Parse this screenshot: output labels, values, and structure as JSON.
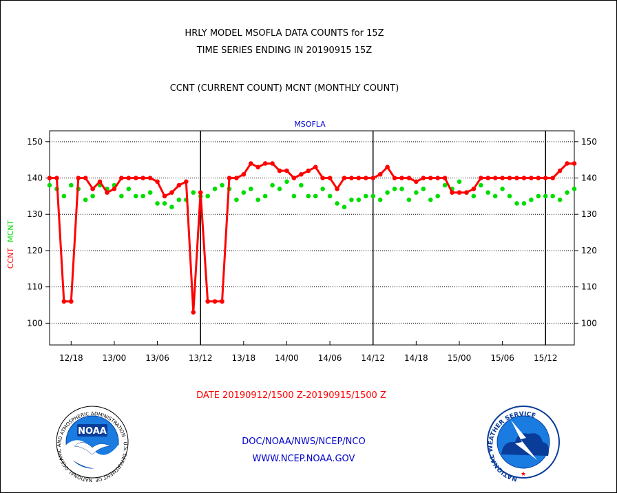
{
  "header": {
    "line1": "HRLY MODEL MSOFLA DATA COUNTS for 15Z",
    "line2": "TIME SERIES ENDING IN 20190915 15Z",
    "line3": "CCNT (CURRENT COUNT) MCNT (MONTHLY COUNT)"
  },
  "footer": {
    "date_range": "DATE 20190912/1500 Z-20190915/1500 Z",
    "org": "DOC/NOAA/NWS/NCEP/NCO",
    "url": "WWW.NCEP.NOAA.GOV"
  },
  "logos": {
    "noaa_text": "NOAA",
    "noaa_ring": "NATIONAL OCEANIC AND ATMOSPHERIC ADMINISTRATION · U.S. DEPARTMENT OF COMMERCE ·",
    "nws_ring": "NATIONAL WEATHER SERVICE"
  },
  "colors": {
    "ccnt": "#ff0000",
    "mcnt": "#00dd00",
    "title_blue": "#0000cc",
    "date_red": "#ff0000"
  },
  "chart_data": {
    "type": "line",
    "title": "MSOFLA",
    "ylabel_left": [
      "CCNT",
      "MCNT"
    ],
    "ylim": [
      94,
      153
    ],
    "yticks": [
      100,
      110,
      120,
      130,
      140,
      150
    ],
    "xlim": [
      0,
      73
    ],
    "xtick_positions": [
      3,
      9,
      15,
      21,
      27,
      33,
      39,
      45,
      51,
      57,
      63,
      69
    ],
    "xtick_labels": [
      "12/18",
      "13/00",
      "13/06",
      "13/12",
      "13/18",
      "14/00",
      "14/06",
      "14/12",
      "14/18",
      "15/00",
      "15/06",
      "15/12"
    ],
    "day_boundaries": [
      21,
      45,
      69
    ],
    "grid": true,
    "series": [
      {
        "name": "CCNT",
        "color": "#ff0000",
        "values": [
          140,
          140,
          106,
          106,
          140,
          140,
          137,
          139,
          136,
          137,
          140,
          140,
          140,
          140,
          140,
          139,
          135,
          136,
          138,
          139,
          103,
          136,
          106,
          106,
          106,
          140,
          140,
          141,
          144,
          143,
          144,
          144,
          142,
          142,
          140,
          141,
          142,
          143,
          140,
          140,
          137,
          140,
          140,
          140,
          140,
          140,
          141,
          143,
          140,
          140,
          140,
          139,
          140,
          140,
          140,
          140,
          136,
          136,
          136,
          137,
          140,
          140,
          140,
          140,
          140,
          140,
          140,
          140,
          140,
          140,
          140,
          142,
          144,
          144
        ]
      },
      {
        "name": "MCNT",
        "color": "#00dd00",
        "values": [
          138,
          137,
          135,
          138,
          137,
          134,
          135,
          138,
          137,
          138,
          135,
          137,
          135,
          135,
          136,
          133,
          133,
          132,
          134,
          134,
          136,
          135,
          135,
          137,
          138,
          137,
          134,
          136,
          137,
          134,
          135,
          138,
          137,
          139,
          135,
          138,
          135,
          135,
          137,
          135,
          133,
          132,
          134,
          134,
          135,
          135,
          134,
          136,
          137,
          137,
          134,
          136,
          137,
          134,
          135,
          138,
          137,
          139,
          136,
          135,
          138,
          136,
          135,
          137,
          135,
          133,
          133,
          134,
          135,
          135,
          135,
          134,
          136,
          137
        ]
      }
    ]
  }
}
